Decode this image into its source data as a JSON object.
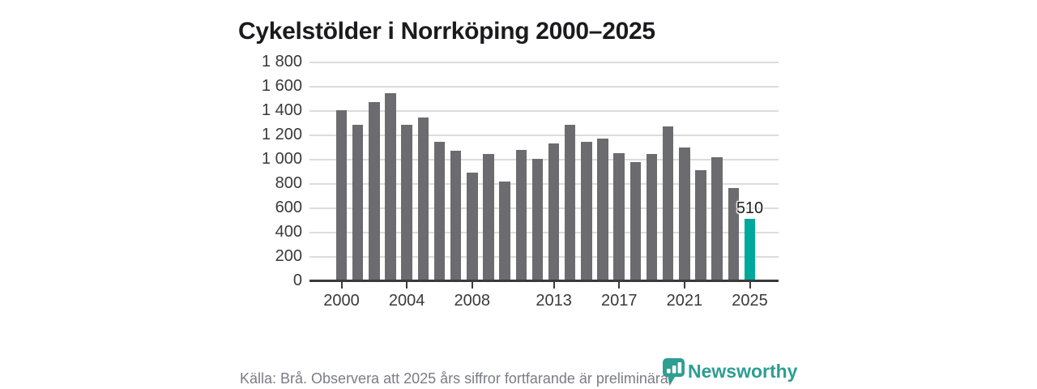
{
  "title": "Cykelstölder i Norrköping 2000–2025",
  "footer": {
    "source_note": "Källa: Brå. Observera att 2025 års siffror fortfarande är preliminära.",
    "brand": "Newsworthy"
  },
  "colors": {
    "bar": "#6c6c70",
    "highlight": "#00a79b",
    "brand": "#2d9e92",
    "gridline": "#dcdcdc",
    "axis": "#3a3a3a",
    "title_text": "#1b1b1d",
    "data_label_text": "#1d1d1f",
    "footer_text": "#7b7b85"
  },
  "chart_data": {
    "type": "bar",
    "title": "Cykelstölder i Norrköping 2000–2025",
    "categories": [
      2000,
      2001,
      2002,
      2003,
      2004,
      2005,
      2006,
      2007,
      2008,
      2009,
      2010,
      2011,
      2012,
      2013,
      2014,
      2015,
      2016,
      2017,
      2018,
      2019,
      2020,
      2021,
      2022,
      2023,
      2024,
      2025
    ],
    "values": [
      1400,
      1280,
      1470,
      1540,
      1280,
      1340,
      1140,
      1070,
      885,
      1040,
      815,
      1075,
      1000,
      1130,
      1280,
      1140,
      1170,
      1050,
      975,
      1040,
      1270,
      1095,
      910,
      1015,
      760,
      510
    ],
    "highlight_category": 2025,
    "data_labels": [
      {
        "category": 2025,
        "label": "510"
      }
    ],
    "xlabel": "",
    "ylabel": "",
    "ylim": [
      0,
      1800
    ],
    "y_ticks": [
      0,
      200,
      400,
      600,
      800,
      1000,
      1200,
      1400,
      1600,
      1800
    ],
    "y_tick_labels": [
      "0",
      "200",
      "400",
      "600",
      "800",
      "1 000",
      "1 200",
      "1 400",
      "1 600",
      "1 800"
    ],
    "x_tick_years": [
      2000,
      2004,
      2008,
      2013,
      2017,
      2021,
      2025
    ],
    "x_tick_labels": [
      "2000",
      "2004",
      "2008",
      "2013",
      "2017",
      "2021",
      "2025"
    ],
    "grid": true,
    "legend": false
  }
}
